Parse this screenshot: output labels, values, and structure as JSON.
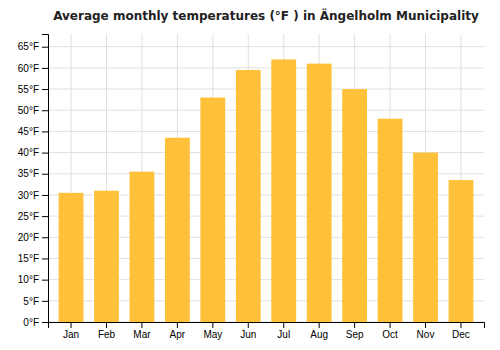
{
  "chart_data": {
    "type": "bar",
    "title": "Average monthly temperatures (°F ) in Ängelholm Municipality",
    "categories": [
      "Jan",
      "Feb",
      "Mar",
      "Apr",
      "May",
      "Jun",
      "Jul",
      "Aug",
      "Sep",
      "Oct",
      "Nov",
      "Dec"
    ],
    "values": [
      30.5,
      31.0,
      35.5,
      43.5,
      53.0,
      59.5,
      62.0,
      61.0,
      55.0,
      48.0,
      40.0,
      33.5
    ],
    "color": "#FFC03A",
    "ylim": [
      0,
      68
    ],
    "yticks": [
      {
        "value": 0,
        "label": "0°F"
      },
      {
        "value": 5,
        "label": "5°F"
      },
      {
        "value": 10,
        "label": "10°F"
      },
      {
        "value": 15,
        "label": "15°F"
      },
      {
        "value": 20,
        "label": "20°F"
      },
      {
        "value": 25,
        "label": "25°F"
      },
      {
        "value": 30,
        "label": "30°F"
      },
      {
        "value": 35,
        "label": "35°F"
      },
      {
        "value": 40,
        "label": "40°F"
      },
      {
        "value": 45,
        "label": "45°F"
      },
      {
        "value": 50,
        "label": "50°F"
      },
      {
        "value": 55,
        "label": "55°F"
      },
      {
        "value": 60,
        "label": "60°F"
      },
      {
        "value": 65,
        "label": "65°F"
      }
    ],
    "grid": true
  }
}
